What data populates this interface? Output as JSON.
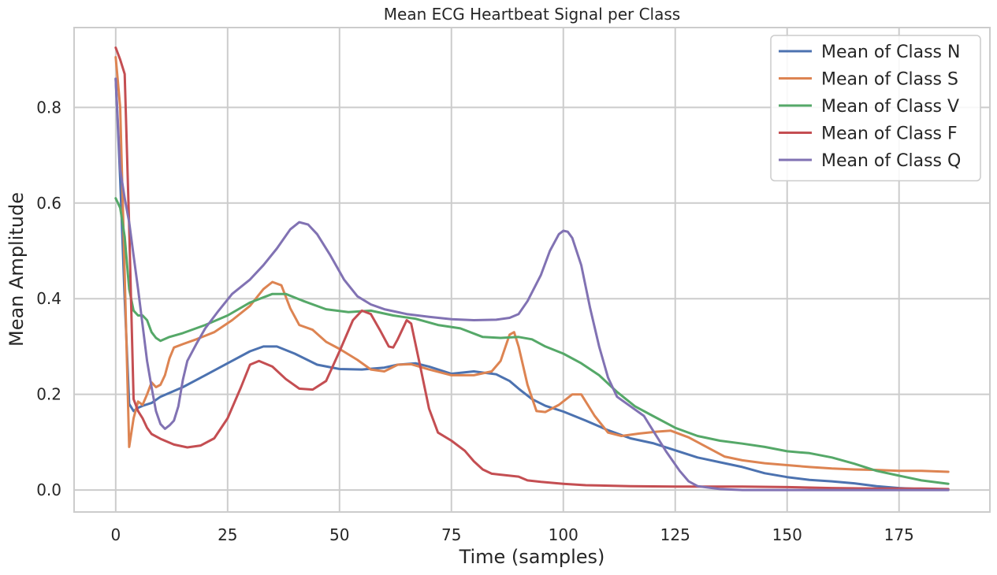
{
  "chart_data": {
    "type": "line",
    "title": "Mean ECG Heartbeat Signal per Class",
    "xlabel": "Time (samples)",
    "ylabel": "Mean Amplitude",
    "xlim": [
      -9.3,
      195.3
    ],
    "ylim": [
      -0.046,
      0.967
    ],
    "xticks": [
      0,
      25,
      50,
      75,
      100,
      125,
      150,
      175
    ],
    "yticks": [
      0.0,
      0.2,
      0.4,
      0.6,
      0.8
    ],
    "ytick_labels": [
      "0.0",
      "0.2",
      "0.4",
      "0.6",
      "0.8"
    ],
    "grid": true,
    "legend_position": "top-right",
    "series": [
      {
        "name": "Mean of Class N",
        "color": "#4c72b0",
        "points": [
          [
            0,
            0.86
          ],
          [
            1,
            0.65
          ],
          [
            2,
            0.4
          ],
          [
            3,
            0.18
          ],
          [
            4,
            0.165
          ],
          [
            5,
            0.172
          ],
          [
            6,
            0.176
          ],
          [
            8,
            0.182
          ],
          [
            10,
            0.195
          ],
          [
            15,
            0.215
          ],
          [
            20,
            0.24
          ],
          [
            25,
            0.265
          ],
          [
            30,
            0.29
          ],
          [
            33,
            0.3
          ],
          [
            36,
            0.3
          ],
          [
            40,
            0.285
          ],
          [
            45,
            0.262
          ],
          [
            50,
            0.253
          ],
          [
            55,
            0.252
          ],
          [
            60,
            0.256
          ],
          [
            63,
            0.262
          ],
          [
            67,
            0.265
          ],
          [
            70,
            0.258
          ],
          [
            75,
            0.243
          ],
          [
            80,
            0.248
          ],
          [
            85,
            0.242
          ],
          [
            88,
            0.228
          ],
          [
            90,
            0.212
          ],
          [
            93,
            0.19
          ],
          [
            96,
            0.176
          ],
          [
            100,
            0.164
          ],
          [
            105,
            0.145
          ],
          [
            110,
            0.125
          ],
          [
            115,
            0.108
          ],
          [
            120,
            0.098
          ],
          [
            125,
            0.083
          ],
          [
            130,
            0.068
          ],
          [
            135,
            0.058
          ],
          [
            140,
            0.048
          ],
          [
            145,
            0.035
          ],
          [
            150,
            0.027
          ],
          [
            155,
            0.021
          ],
          [
            160,
            0.018
          ],
          [
            165,
            0.014
          ],
          [
            170,
            0.008
          ],
          [
            175,
            0.004
          ],
          [
            180,
            0.002
          ],
          [
            186,
            0.001
          ]
        ]
      },
      {
        "name": "Mean of Class S",
        "color": "#dd8452",
        "points": [
          [
            0,
            0.905
          ],
          [
            1,
            0.8
          ],
          [
            2,
            0.45
          ],
          [
            3,
            0.09
          ],
          [
            4,
            0.15
          ],
          [
            5,
            0.185
          ],
          [
            6,
            0.178
          ],
          [
            7,
            0.2
          ],
          [
            8,
            0.225
          ],
          [
            9,
            0.215
          ],
          [
            10,
            0.22
          ],
          [
            11,
            0.24
          ],
          [
            12,
            0.275
          ],
          [
            13,
            0.298
          ],
          [
            15,
            0.305
          ],
          [
            18,
            0.315
          ],
          [
            22,
            0.33
          ],
          [
            26,
            0.355
          ],
          [
            30,
            0.385
          ],
          [
            33,
            0.42
          ],
          [
            35,
            0.435
          ],
          [
            37,
            0.428
          ],
          [
            39,
            0.38
          ],
          [
            41,
            0.345
          ],
          [
            44,
            0.335
          ],
          [
            47,
            0.31
          ],
          [
            50,
            0.295
          ],
          [
            54,
            0.272
          ],
          [
            57,
            0.252
          ],
          [
            60,
            0.248
          ],
          [
            63,
            0.262
          ],
          [
            66,
            0.263
          ],
          [
            70,
            0.252
          ],
          [
            75,
            0.24
          ],
          [
            80,
            0.24
          ],
          [
            84,
            0.248
          ],
          [
            86,
            0.27
          ],
          [
            88,
            0.325
          ],
          [
            89,
            0.33
          ],
          [
            90,
            0.3
          ],
          [
            92,
            0.22
          ],
          [
            94,
            0.165
          ],
          [
            96,
            0.163
          ],
          [
            99,
            0.178
          ],
          [
            102,
            0.2
          ],
          [
            104,
            0.2
          ],
          [
            107,
            0.155
          ],
          [
            110,
            0.12
          ],
          [
            113,
            0.113
          ],
          [
            117,
            0.118
          ],
          [
            121,
            0.122
          ],
          [
            124,
            0.124
          ],
          [
            128,
            0.11
          ],
          [
            132,
            0.09
          ],
          [
            136,
            0.07
          ],
          [
            140,
            0.062
          ],
          [
            145,
            0.056
          ],
          [
            150,
            0.052
          ],
          [
            155,
            0.048
          ],
          [
            160,
            0.045
          ],
          [
            165,
            0.043
          ],
          [
            170,
            0.042
          ],
          [
            175,
            0.04
          ],
          [
            180,
            0.04
          ],
          [
            186,
            0.038
          ]
        ]
      },
      {
        "name": "Mean of Class V",
        "color": "#55a868",
        "points": [
          [
            0,
            0.61
          ],
          [
            1,
            0.59
          ],
          [
            2,
            0.53
          ],
          [
            3,
            0.42
          ],
          [
            4,
            0.375
          ],
          [
            5,
            0.365
          ],
          [
            6,
            0.365
          ],
          [
            7,
            0.355
          ],
          [
            8,
            0.33
          ],
          [
            9,
            0.318
          ],
          [
            10,
            0.312
          ],
          [
            12,
            0.32
          ],
          [
            15,
            0.328
          ],
          [
            20,
            0.345
          ],
          [
            25,
            0.365
          ],
          [
            30,
            0.392
          ],
          [
            35,
            0.41
          ],
          [
            38,
            0.41
          ],
          [
            42,
            0.395
          ],
          [
            47,
            0.378
          ],
          [
            52,
            0.372
          ],
          [
            57,
            0.375
          ],
          [
            62,
            0.365
          ],
          [
            67,
            0.358
          ],
          [
            72,
            0.345
          ],
          [
            77,
            0.338
          ],
          [
            82,
            0.32
          ],
          [
            86,
            0.318
          ],
          [
            90,
            0.32
          ],
          [
            93,
            0.315
          ],
          [
            96,
            0.3
          ],
          [
            100,
            0.285
          ],
          [
            104,
            0.265
          ],
          [
            108,
            0.24
          ],
          [
            112,
            0.205
          ],
          [
            116,
            0.175
          ],
          [
            120,
            0.155
          ],
          [
            125,
            0.13
          ],
          [
            130,
            0.113
          ],
          [
            135,
            0.103
          ],
          [
            140,
            0.097
          ],
          [
            145,
            0.09
          ],
          [
            150,
            0.081
          ],
          [
            155,
            0.077
          ],
          [
            160,
            0.068
          ],
          [
            165,
            0.055
          ],
          [
            170,
            0.04
          ],
          [
            175,
            0.03
          ],
          [
            180,
            0.02
          ],
          [
            186,
            0.013
          ]
        ]
      },
      {
        "name": "Mean of Class F",
        "color": "#c44e52",
        "points": [
          [
            0,
            0.925
          ],
          [
            1,
            0.9
          ],
          [
            2,
            0.87
          ],
          [
            3,
            0.55
          ],
          [
            4,
            0.19
          ],
          [
            5,
            0.165
          ],
          [
            6,
            0.15
          ],
          [
            7,
            0.13
          ],
          [
            8,
            0.117
          ],
          [
            10,
            0.107
          ],
          [
            13,
            0.095
          ],
          [
            16,
            0.089
          ],
          [
            19,
            0.093
          ],
          [
            22,
            0.108
          ],
          [
            25,
            0.15
          ],
          [
            28,
            0.215
          ],
          [
            30,
            0.262
          ],
          [
            32,
            0.27
          ],
          [
            35,
            0.258
          ],
          [
            38,
            0.232
          ],
          [
            41,
            0.212
          ],
          [
            44,
            0.21
          ],
          [
            47,
            0.228
          ],
          [
            50,
            0.29
          ],
          [
            53,
            0.355
          ],
          [
            55,
            0.375
          ],
          [
            57,
            0.368
          ],
          [
            59,
            0.335
          ],
          [
            61,
            0.3
          ],
          [
            62,
            0.298
          ],
          [
            63,
            0.315
          ],
          [
            65,
            0.355
          ],
          [
            66,
            0.348
          ],
          [
            68,
            0.26
          ],
          [
            70,
            0.17
          ],
          [
            72,
            0.12
          ],
          [
            75,
            0.103
          ],
          [
            78,
            0.082
          ],
          [
            80,
            0.06
          ],
          [
            82,
            0.043
          ],
          [
            84,
            0.034
          ],
          [
            90,
            0.028
          ],
          [
            92,
            0.02
          ],
          [
            95,
            0.017
          ],
          [
            100,
            0.013
          ],
          [
            105,
            0.01
          ],
          [
            115,
            0.008
          ],
          [
            125,
            0.007
          ],
          [
            140,
            0.007
          ],
          [
            150,
            0.006
          ],
          [
            160,
            0.004
          ],
          [
            170,
            0.003
          ],
          [
            180,
            0.003
          ],
          [
            186,
            0.002
          ]
        ]
      },
      {
        "name": "Mean of Class Q",
        "color": "#8172b3",
        "points": [
          [
            0,
            0.86
          ],
          [
            1,
            0.67
          ],
          [
            2,
            0.61
          ],
          [
            3,
            0.56
          ],
          [
            4,
            0.49
          ],
          [
            5,
            0.42
          ],
          [
            6,
            0.345
          ],
          [
            7,
            0.27
          ],
          [
            8,
            0.215
          ],
          [
            9,
            0.165
          ],
          [
            10,
            0.138
          ],
          [
            11,
            0.128
          ],
          [
            12,
            0.135
          ],
          [
            13,
            0.145
          ],
          [
            14,
            0.175
          ],
          [
            15,
            0.23
          ],
          [
            16,
            0.27
          ],
          [
            18,
            0.305
          ],
          [
            20,
            0.338
          ],
          [
            23,
            0.375
          ],
          [
            26,
            0.41
          ],
          [
            30,
            0.44
          ],
          [
            33,
            0.47
          ],
          [
            36,
            0.505
          ],
          [
            39,
            0.545
          ],
          [
            41,
            0.56
          ],
          [
            43,
            0.555
          ],
          [
            45,
            0.535
          ],
          [
            48,
            0.49
          ],
          [
            51,
            0.44
          ],
          [
            54,
            0.405
          ],
          [
            57,
            0.388
          ],
          [
            60,
            0.378
          ],
          [
            65,
            0.368
          ],
          [
            70,
            0.362
          ],
          [
            75,
            0.357
          ],
          [
            80,
            0.355
          ],
          [
            85,
            0.356
          ],
          [
            88,
            0.36
          ],
          [
            90,
            0.368
          ],
          [
            92,
            0.395
          ],
          [
            95,
            0.45
          ],
          [
            97,
            0.5
          ],
          [
            99,
            0.535
          ],
          [
            100,
            0.542
          ],
          [
            101,
            0.54
          ],
          [
            102,
            0.527
          ],
          [
            104,
            0.47
          ],
          [
            106,
            0.38
          ],
          [
            108,
            0.3
          ],
          [
            110,
            0.235
          ],
          [
            112,
            0.195
          ],
          [
            115,
            0.175
          ],
          [
            118,
            0.155
          ],
          [
            120,
            0.125
          ],
          [
            123,
            0.08
          ],
          [
            126,
            0.04
          ],
          [
            128,
            0.018
          ],
          [
            130,
            0.008
          ],
          [
            135,
            0.002
          ],
          [
            140,
            0.0
          ],
          [
            186,
            0.0
          ]
        ]
      }
    ]
  }
}
